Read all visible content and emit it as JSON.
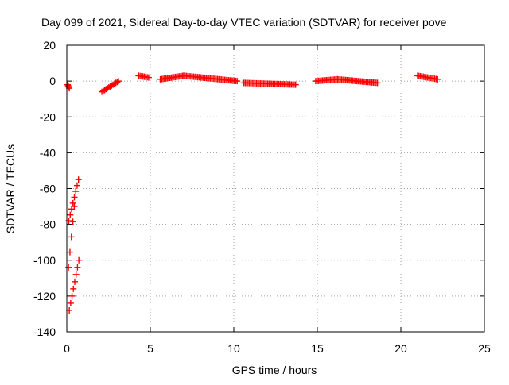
{
  "chart_data": {
    "type": "scatter",
    "title": "Day 099 of 2021, Sidereal Day-to-day VTEC variation (SDTVAR) for receiver pove",
    "xlabel": "GPS time / hours",
    "ylabel": "SDTVAR / TECUs",
    "xlim": [
      0,
      25
    ],
    "ylim": [
      -140,
      20
    ],
    "x_ticks": [
      0,
      5,
      10,
      15,
      20,
      25
    ],
    "y_ticks": [
      -140,
      -120,
      -100,
      -80,
      -60,
      -40,
      -20,
      0,
      20
    ],
    "grid": true,
    "legend": "none",
    "marker": "plus",
    "color": "#ff0000",
    "series": [
      {
        "segments": [
          {
            "x_start": 0.05,
            "x_end": 0.15,
            "y_start": -2,
            "y_end": -4
          },
          {
            "x_start": 0.12,
            "x_end": 0.7,
            "y_start": -78,
            "y_end": -55
          },
          {
            "x_start": 0.1,
            "x_end": 0.45,
            "y_start": -104,
            "y_end": -70
          },
          {
            "x_start": 0.15,
            "x_end": 0.72,
            "y_start": -128,
            "y_end": -100
          },
          {
            "x_start": 2.1,
            "x_end": 3.1,
            "y_start": -6,
            "y_end": 0
          },
          {
            "x_start": 4.3,
            "x_end": 4.9,
            "y_start": 3,
            "y_end": 2
          },
          {
            "x_start": 5.6,
            "x_end": 7.0,
            "y_start": 1,
            "y_end": 3
          },
          {
            "x_start": 7.0,
            "x_end": 10.2,
            "y_start": 3,
            "y_end": 0
          },
          {
            "x_start": 10.6,
            "x_end": 13.7,
            "y_start": -1,
            "y_end": -2
          },
          {
            "x_start": 14.9,
            "x_end": 16.2,
            "y_start": 0,
            "y_end": 1
          },
          {
            "x_start": 16.2,
            "x_end": 18.6,
            "y_start": 1,
            "y_end": -1
          },
          {
            "x_start": 21.0,
            "x_end": 22.2,
            "y_start": 3,
            "y_end": 1
          }
        ]
      }
    ]
  }
}
